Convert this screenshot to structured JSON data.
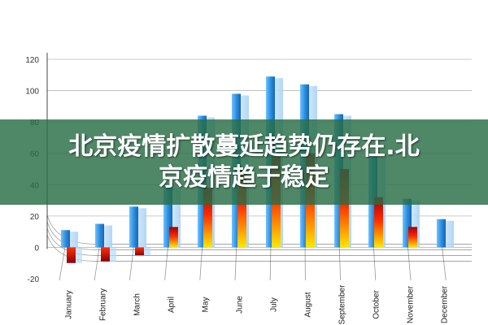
{
  "banner": {
    "line1": "北京疫情扩散蔓延趋势仍存在.北",
    "line2": "京疫情趋于稳定"
  },
  "chart_data": {
    "type": "bar",
    "title": "",
    "xlabel": "",
    "ylabel": "",
    "ylim": [
      -20,
      120
    ],
    "yticks": [
      -20,
      0,
      20,
      40,
      60,
      80,
      100,
      120
    ],
    "categories": [
      "January",
      "February",
      "March",
      "April",
      "May",
      "June",
      "July",
      "August",
      "September",
      "October",
      "November",
      "December"
    ],
    "series": [
      {
        "values": [
          11,
          15,
          26,
          39,
          84,
          98,
          109,
          104,
          85,
          60,
          31,
          18
        ]
      },
      {
        "values": [
          -10,
          -9,
          -5,
          13,
          38,
          50,
          58,
          60,
          50,
          32,
          13,
          0
        ]
      }
    ],
    "colors": {
      "series1": "#2e90e0",
      "series2_top": "#c00010",
      "series2_mid": "#ff3000",
      "series2_bottom": "#ffe000",
      "grid": "#555555"
    }
  }
}
